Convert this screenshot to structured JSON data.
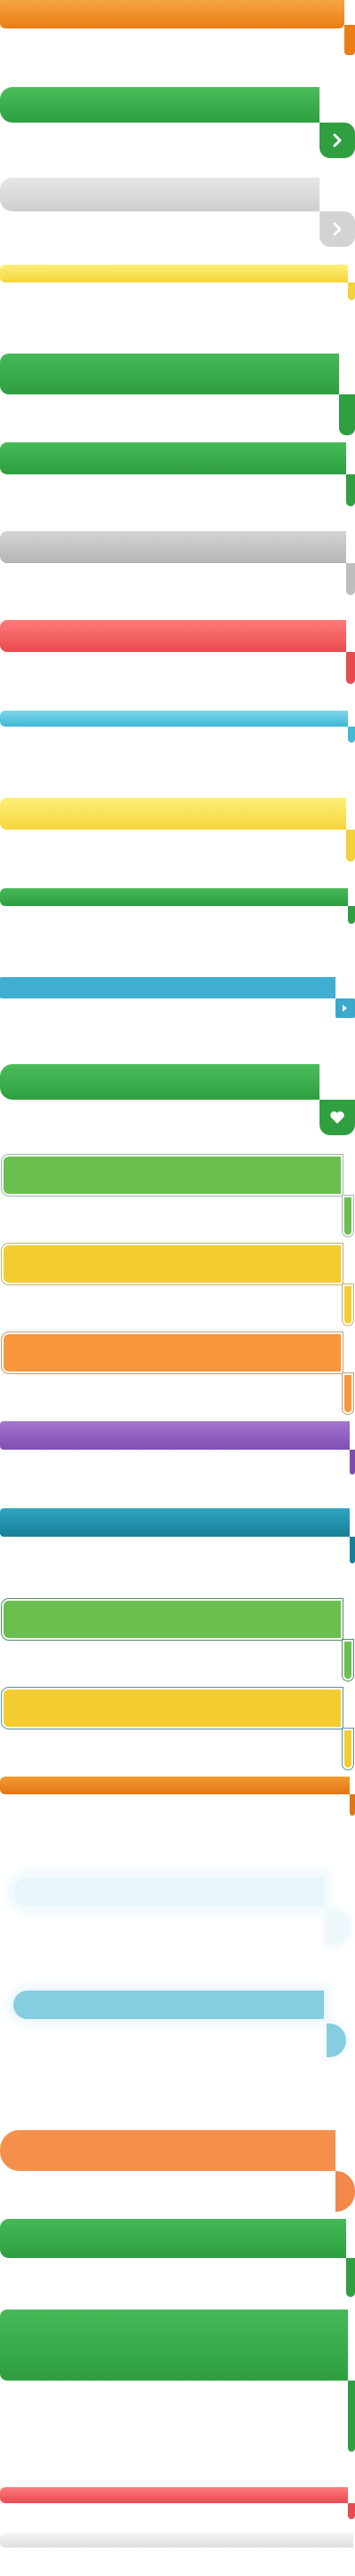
{
  "sheet": {
    "title": "",
    "ribbons": [
      {
        "id": "orange",
        "color": "#ea7d13"
      },
      {
        "id": "green-arrow",
        "color": "#2f9f40",
        "icon": "chevron-right-icon"
      },
      {
        "id": "gray-arrow",
        "color": "#d3d3d3",
        "icon": "chevron-right-icon"
      },
      {
        "id": "yellow-thin",
        "color": "#f3d23a"
      },
      {
        "id": "green-large",
        "color": "#2f9f40"
      },
      {
        "id": "green",
        "color": "#2f9f40"
      },
      {
        "id": "gray",
        "color": "#bdbdbd"
      },
      {
        "id": "red",
        "color": "#e84a4f"
      },
      {
        "id": "light-blue-thin",
        "color": "#44b9d6"
      },
      {
        "id": "yellow",
        "color": "#f3d23a"
      },
      {
        "id": "green-thin",
        "color": "#2f9f40"
      },
      {
        "id": "blue-flat-arrow",
        "color": "#3aa9cc",
        "icon": "chevron-right-icon"
      },
      {
        "id": "green-heart",
        "color": "#2f9f40",
        "icon": "heart-icon"
      },
      {
        "id": "green-outlined",
        "color": "#6abf4f"
      },
      {
        "id": "yellow-outlined",
        "color": "#f3cc30"
      },
      {
        "id": "orange-outlined",
        "color": "#f7963a"
      },
      {
        "id": "purple",
        "color": "#7d4cb0"
      },
      {
        "id": "teal",
        "color": "#187f98"
      },
      {
        "id": "green-outlined-dark",
        "color": "#6abf4f"
      },
      {
        "id": "yellow-outlined-blue",
        "color": "#f3cc30"
      },
      {
        "id": "orange-thin",
        "color": "#e07511"
      },
      {
        "id": "glow-light",
        "color": "#e9f6fc"
      },
      {
        "id": "glow-blue",
        "color": "#85cde0"
      },
      {
        "id": "orange-round",
        "color": "#f4874a"
      },
      {
        "id": "green-medium",
        "color": "#2f9f40"
      },
      {
        "id": "green-tall",
        "color": "#2f9f40"
      },
      {
        "id": "red-thin",
        "color": "#e84a4f"
      },
      {
        "id": "gray-thin",
        "color": "#dedede"
      }
    ]
  }
}
